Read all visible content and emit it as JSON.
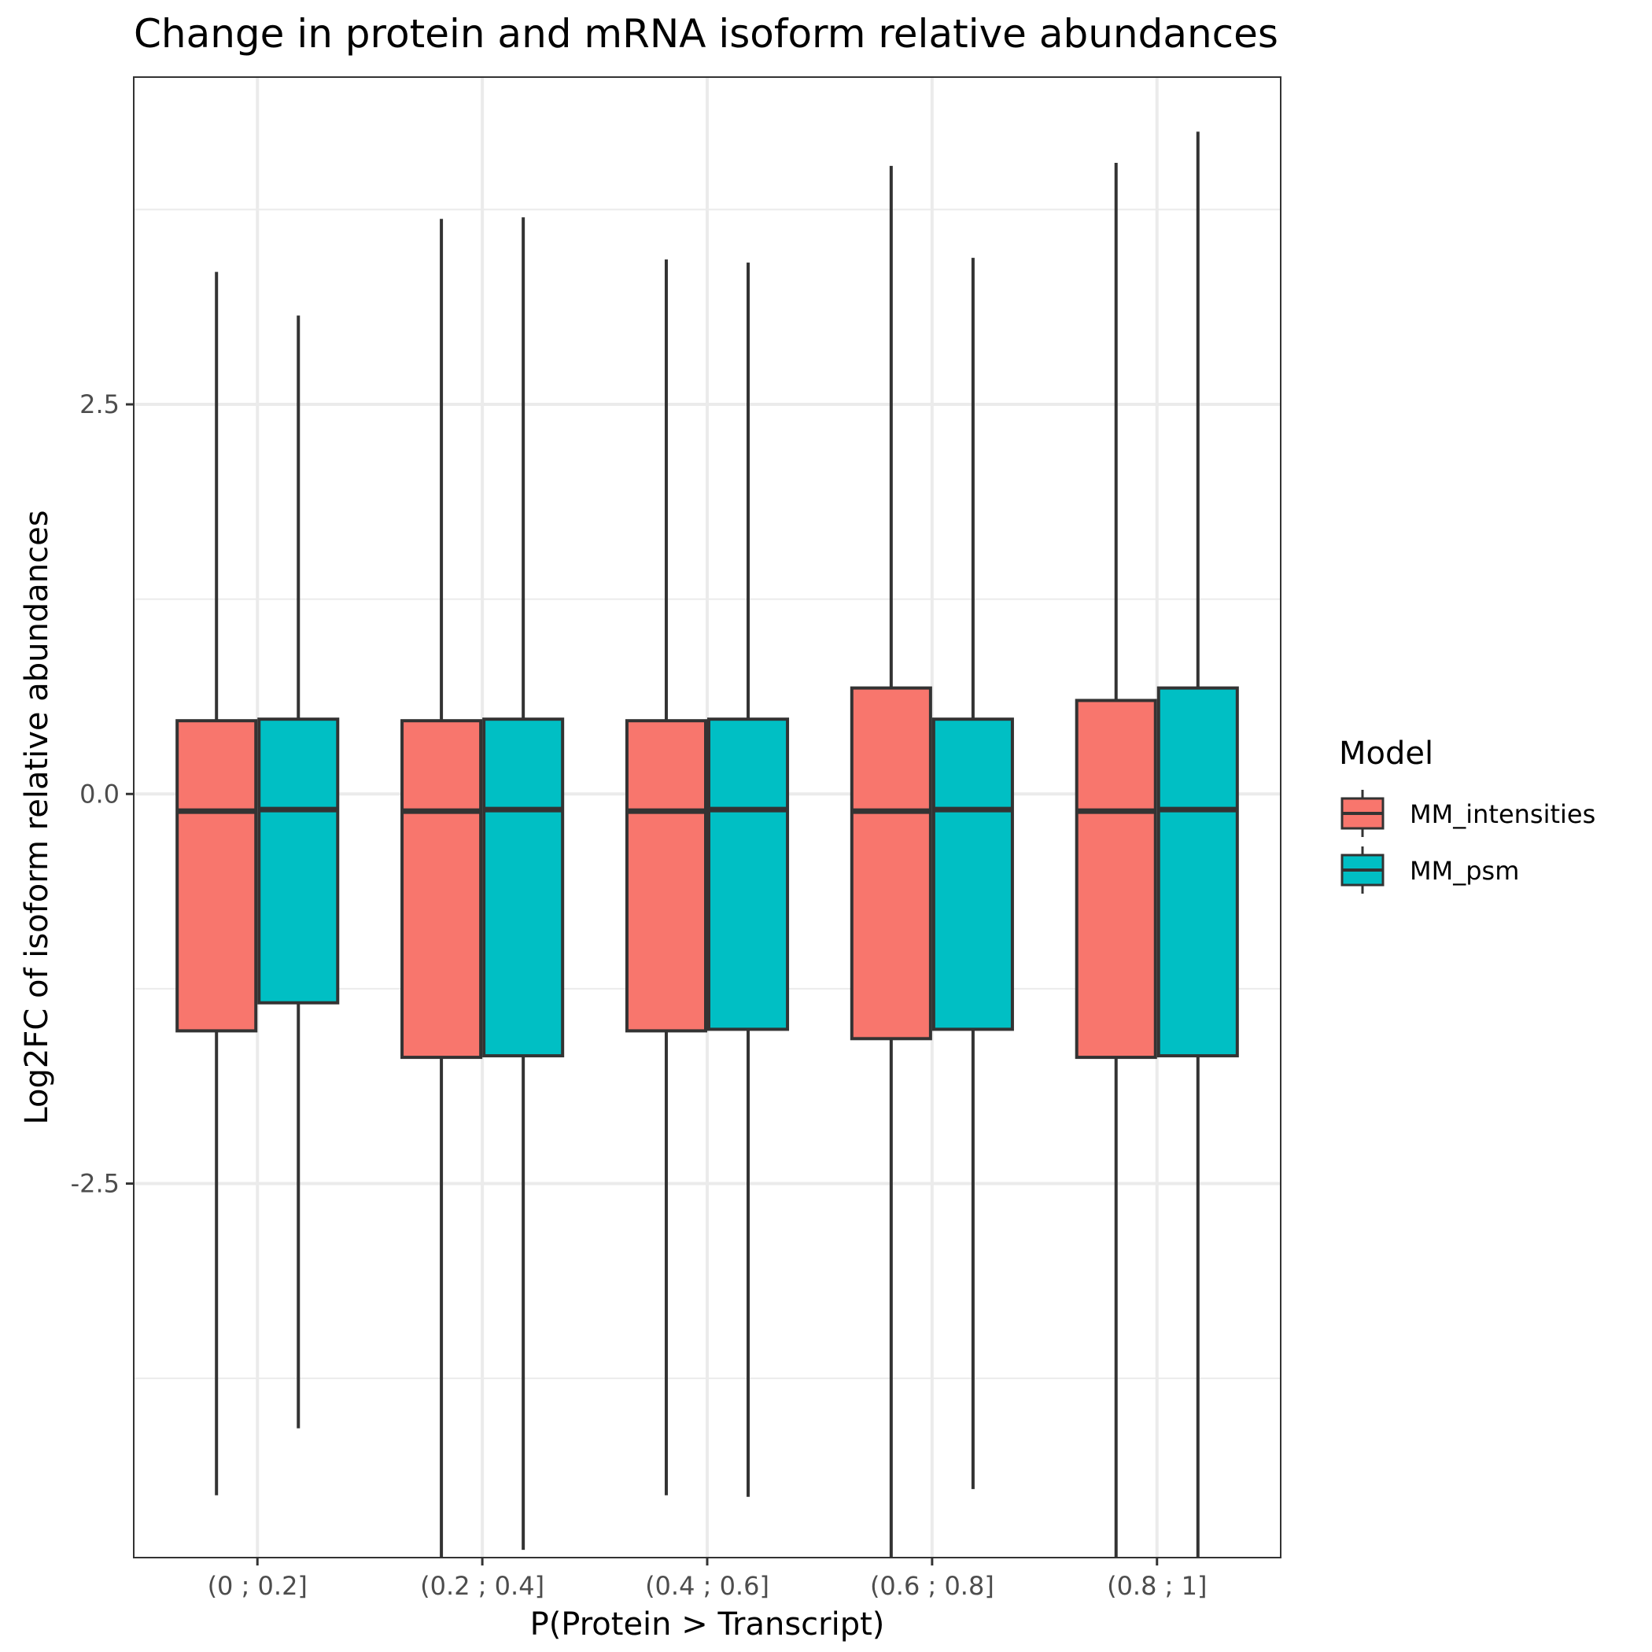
{
  "chart_data": {
    "type": "boxplot",
    "title": "Change in protein and mRNA isoform relative abundances",
    "xlabel": "P(Protein > Transcript)",
    "ylabel": "Log2FC of isoform relative abundances",
    "ylim": [
      -4.9,
      4.6
    ],
    "yticks": [
      2.5,
      0.0,
      -2.5
    ],
    "ytick_labels": [
      "2.5",
      "0.0",
      "-2.5"
    ],
    "grid": true,
    "legend_title": "Model",
    "legend_position": "right",
    "categories": [
      "(0 ; 0.2]",
      "(0.2 ; 0.4]",
      "(0.4 ; 0.6]",
      "(0.6 ; 0.8]",
      "(0.8 ; 1]"
    ],
    "series": [
      {
        "name": "MM_intensities",
        "color": "#F8766D",
        "boxes": [
          {
            "whisker_low": -4.5,
            "q1": -1.52,
            "median": -0.11,
            "q3": 0.47,
            "whisker_high": 3.35
          },
          {
            "whisker_low": -4.9,
            "q1": -1.69,
            "median": -0.11,
            "q3": 0.47,
            "whisker_high": 3.69
          },
          {
            "whisker_low": -4.5,
            "q1": -1.52,
            "median": -0.11,
            "q3": 0.47,
            "whisker_high": 3.43
          },
          {
            "whisker_low": -4.9,
            "q1": -1.57,
            "median": -0.11,
            "q3": 0.68,
            "whisker_high": 4.03
          },
          {
            "whisker_low": -4.9,
            "q1": -1.69,
            "median": -0.11,
            "q3": 0.6,
            "whisker_high": 4.05
          }
        ]
      },
      {
        "name": "MM_psm",
        "color": "#00BFC4",
        "boxes": [
          {
            "whisker_low": -4.07,
            "q1": -1.34,
            "median": -0.1,
            "q3": 0.48,
            "whisker_high": 3.07
          },
          {
            "whisker_low": -4.85,
            "q1": -1.68,
            "median": -0.1,
            "q3": 0.48,
            "whisker_high": 3.7
          },
          {
            "whisker_low": -4.51,
            "q1": -1.51,
            "median": -0.1,
            "q3": 0.48,
            "whisker_high": 3.41
          },
          {
            "whisker_low": -4.46,
            "q1": -1.51,
            "median": -0.1,
            "q3": 0.48,
            "whisker_high": 3.44
          },
          {
            "whisker_low": -4.9,
            "q1": -1.68,
            "median": -0.1,
            "q3": 0.68,
            "whisker_high": 4.25
          }
        ]
      }
    ]
  }
}
